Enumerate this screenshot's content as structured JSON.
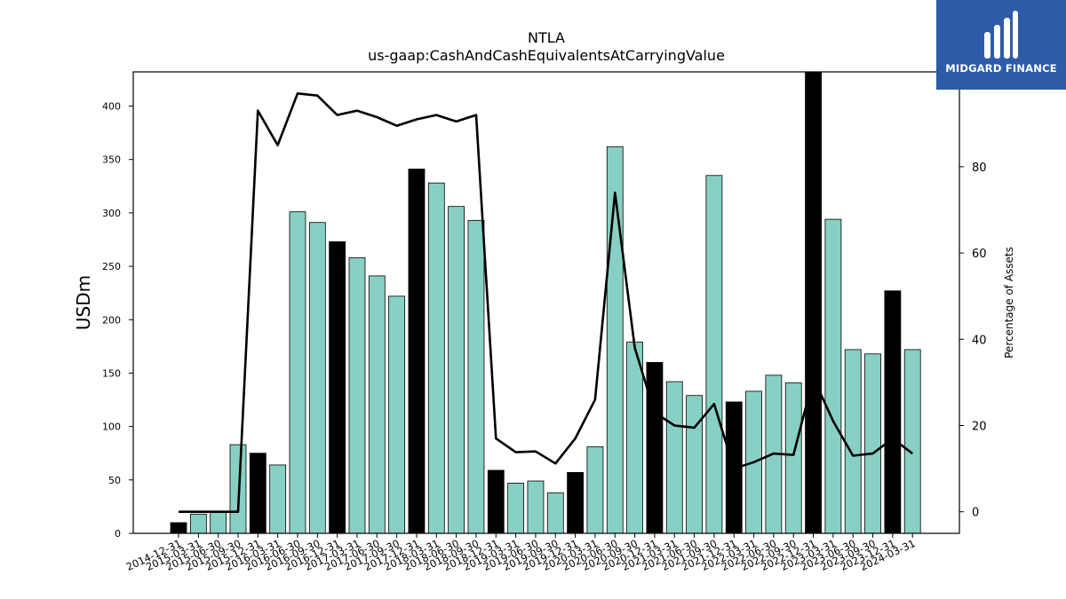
{
  "chart_data": {
    "type": "bar",
    "title": "NTLA",
    "subtitle": "us-gaap:CashAndCashEquivalentsAtCarryingValue",
    "ylabel": "USDm",
    "y2label": "Percentage of Assets",
    "ylim": [
      0,
      432
    ],
    "y2lim": [
      -5,
      102
    ],
    "yticks": [
      0,
      50,
      100,
      150,
      200,
      250,
      300,
      350,
      400
    ],
    "y2ticks": [
      0,
      20,
      40,
      60,
      80
    ],
    "categories": [
      "2014-12-31",
      "2015-03-31",
      "2015-06-30",
      "2015-09-30",
      "2015-12-31",
      "2016-03-31",
      "2016-06-30",
      "2016-09-30",
      "2016-12-31",
      "2017-03-31",
      "2017-06-30",
      "2017-09-30",
      "2017-12-31",
      "2018-03-31",
      "2018-06-30",
      "2018-09-30",
      "2018-12-31",
      "2019-03-31",
      "2019-06-30",
      "2019-09-30",
      "2019-12-31",
      "2020-03-31",
      "2020-06-30",
      "2020-09-30",
      "2020-12-31",
      "2021-03-31",
      "2021-06-30",
      "2021-09-30",
      "2021-12-31",
      "2022-03-31",
      "2022-06-30",
      "2022-09-30",
      "2022-12-31",
      "2023-03-31",
      "2023-06-30",
      "2023-09-30",
      "2023-12-31",
      "2024-03-31"
    ],
    "series": [
      {
        "type": "bar",
        "axis": "left",
        "values": [
          10,
          18,
          20,
          83,
          75,
          64,
          301,
          291,
          273,
          258,
          241,
          222,
          341,
          328,
          306,
          293,
          59,
          47,
          49,
          38,
          57,
          81,
          362,
          179,
          160,
          142,
          129,
          335,
          123,
          133,
          148,
          141,
          432,
          294,
          172,
          168,
          227,
          172
        ],
        "highlight": [
          true,
          false,
          false,
          false,
          true,
          false,
          false,
          false,
          true,
          false,
          false,
          false,
          true,
          false,
          false,
          false,
          true,
          false,
          false,
          false,
          true,
          false,
          false,
          false,
          true,
          false,
          false,
          false,
          true,
          false,
          false,
          false,
          true,
          false,
          false,
          false,
          true,
          false
        ]
      },
      {
        "type": "line",
        "axis": "right",
        "values": [
          0,
          0,
          0,
          0,
          93,
          85,
          97,
          96.5,
          92,
          93,
          91.5,
          89.5,
          91,
          92,
          90.5,
          92,
          17,
          13.8,
          14,
          11.2,
          17,
          26,
          74,
          38,
          23,
          20,
          19.5,
          25,
          10,
          11.5,
          13.5,
          13.2,
          31,
          21,
          13,
          13.5,
          17,
          13.5
        ]
      }
    ],
    "colors": {
      "bar": "#88d0c3",
      "highlight_bar": "#000000",
      "line": "#000000"
    },
    "grid": false,
    "legend": "none"
  },
  "logo": {
    "text": "MIDGARD FINANCE",
    "background": "#2d5ba8"
  }
}
